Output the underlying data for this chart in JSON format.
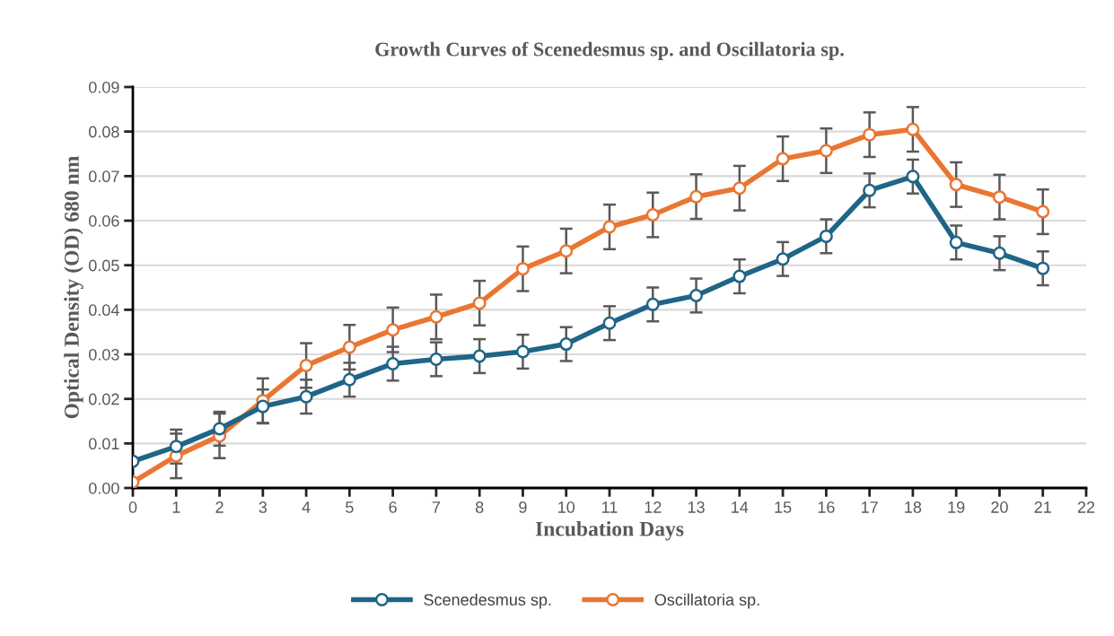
{
  "chart_data": {
    "type": "line",
    "title": "Growth Curves of Scenedesmus sp. and Oscillatoria sp.",
    "xlabel": "Incubation Days",
    "ylabel": "Optical Density (OD) 680 nm",
    "x": [
      0,
      1,
      2,
      3,
      4,
      5,
      6,
      7,
      8,
      9,
      10,
      11,
      12,
      13,
      14,
      15,
      16,
      17,
      18,
      19,
      20,
      21
    ],
    "series": [
      {
        "name": "Scenedesmus sp.",
        "color": "#1f6587",
        "values": [
          0.006,
          0.0093,
          0.0133,
          0.0183,
          0.0205,
          0.0243,
          0.0279,
          0.0289,
          0.0296,
          0.0306,
          0.0323,
          0.037,
          0.0412,
          0.0432,
          0.0475,
          0.0514,
          0.0565,
          0.0668,
          0.0699,
          0.0551,
          0.0527,
          0.0493
        ],
        "errors": [
          null,
          0.0038,
          0.0038,
          0.0038,
          0.0038,
          0.0038,
          0.0038,
          0.0038,
          0.0038,
          0.0038,
          0.0038,
          0.0038,
          0.0038,
          0.0038,
          0.0038,
          0.0038,
          0.0038,
          0.0038,
          0.0038,
          0.0038,
          0.0038,
          0.0038
        ]
      },
      {
        "name": "Oscillatoria sp.",
        "color": "#e97632",
        "values": [
          0.0013,
          0.0072,
          0.0117,
          0.0196,
          0.0275,
          0.0316,
          0.0355,
          0.0384,
          0.0415,
          0.0492,
          0.0532,
          0.0586,
          0.0613,
          0.0654,
          0.0673,
          0.0739,
          0.0757,
          0.0793,
          0.0805,
          0.0681,
          0.0653,
          0.062
        ],
        "errors": [
          null,
          0.005,
          0.005,
          0.005,
          0.005,
          0.005,
          0.005,
          0.005,
          0.005,
          0.005,
          0.005,
          0.005,
          0.005,
          0.005,
          0.005,
          0.005,
          0.005,
          0.005,
          0.005,
          0.005,
          0.005,
          0.005
        ]
      }
    ],
    "xlim": [
      0,
      22
    ],
    "xticks": [
      0,
      1,
      2,
      3,
      4,
      5,
      6,
      7,
      8,
      9,
      10,
      11,
      12,
      13,
      14,
      15,
      16,
      17,
      18,
      19,
      20,
      21,
      22
    ],
    "ylim": [
      0,
      0.09
    ],
    "yticks": [
      {
        "value": 0,
        "label": "0.00"
      },
      {
        "value": 0.01,
        "label": "0.01"
      },
      {
        "value": 0.02,
        "label": "0.02"
      },
      {
        "value": 0.03,
        "label": "0.03"
      },
      {
        "value": 0.04,
        "label": "0.04"
      },
      {
        "value": 0.05,
        "label": "0.05"
      },
      {
        "value": 0.06,
        "label": "0.06"
      },
      {
        "value": 0.07,
        "label": "0.07"
      },
      {
        "value": 0.08,
        "label": "0.08"
      },
      {
        "value": 0.09,
        "label": "0.09"
      }
    ],
    "grid": "y",
    "legend": "bottom",
    "marker": "circle",
    "line_style": "solid"
  }
}
